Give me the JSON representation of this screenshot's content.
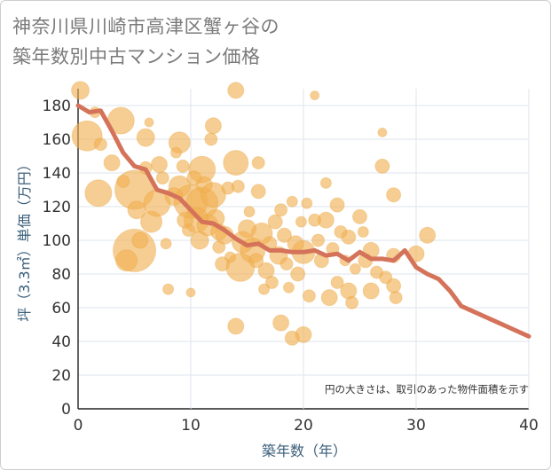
{
  "chart_data": {
    "type": "scatter",
    "title_lines": [
      "神奈川県川崎市高津区蟹ヶ谷の",
      "築年数別中古マンション価格"
    ],
    "xlabel": "築年数（年）",
    "ylabel": "坪（3.3㎡）単価（万円）",
    "xlim": [
      0,
      40
    ],
    "ylim": [
      0,
      190
    ],
    "x_ticks": [
      0,
      10,
      20,
      30,
      40
    ],
    "y_ticks": [
      0,
      20,
      40,
      60,
      80,
      100,
      120,
      140,
      160,
      180
    ],
    "grid": true,
    "annotation": "円の大きさは、取引のあった物件面積を示す",
    "colors": {
      "bubble": "#f0b050",
      "trend": "#d4735a",
      "grid": "#dde5ec",
      "axis_text": "#3a5f7a"
    },
    "trend_line": {
      "x": [
        0,
        1,
        2,
        3,
        4,
        5,
        6,
        7,
        8,
        9,
        10,
        11,
        12,
        13,
        14,
        15,
        16,
        17,
        18,
        19,
        20,
        21,
        22,
        23,
        24,
        25,
        26,
        27,
        28,
        29,
        30,
        31,
        32,
        33,
        34,
        35,
        36,
        37,
        38,
        39,
        40
      ],
      "y": [
        180,
        176,
        177,
        165,
        152,
        144,
        142,
        130,
        128,
        125,
        118,
        111,
        110,
        106,
        101,
        97,
        98,
        94,
        94,
        93,
        93,
        94,
        91,
        92,
        88,
        93,
        89,
        89,
        88,
        94,
        84,
        80,
        77,
        70,
        61,
        58,
        55,
        52,
        49,
        46,
        43
      ]
    },
    "bubbles": [
      {
        "x": 0.2,
        "y": 189,
        "s": 10
      },
      {
        "x": 0.8,
        "y": 162,
        "s": 17
      },
      {
        "x": 1.5,
        "y": 176,
        "s": 6
      },
      {
        "x": 2,
        "y": 157,
        "s": 7
      },
      {
        "x": 1.8,
        "y": 128,
        "s": 15
      },
      {
        "x": 3,
        "y": 146,
        "s": 9
      },
      {
        "x": 3.8,
        "y": 171,
        "s": 15
      },
      {
        "x": 4,
        "y": 135,
        "s": 7
      },
      {
        "x": 4.3,
        "y": 88,
        "s": 12
      },
      {
        "x": 5,
        "y": 130,
        "s": 22
      },
      {
        "x": 5,
        "y": 94,
        "s": 24
      },
      {
        "x": 5.2,
        "y": 118,
        "s": 10
      },
      {
        "x": 5.5,
        "y": 100,
        "s": 9
      },
      {
        "x": 6,
        "y": 161,
        "s": 10
      },
      {
        "x": 6,
        "y": 143,
        "s": 7
      },
      {
        "x": 6.3,
        "y": 170,
        "s": 5
      },
      {
        "x": 6.5,
        "y": 111,
        "s": 12
      },
      {
        "x": 7,
        "y": 122,
        "s": 15
      },
      {
        "x": 7.2,
        "y": 145,
        "s": 9
      },
      {
        "x": 7.5,
        "y": 137,
        "s": 7
      },
      {
        "x": 7.8,
        "y": 98,
        "s": 6
      },
      {
        "x": 8,
        "y": 71,
        "s": 6
      },
      {
        "x": 8.5,
        "y": 126,
        "s": 10
      },
      {
        "x": 8.7,
        "y": 152,
        "s": 6
      },
      {
        "x": 9,
        "y": 158,
        "s": 12
      },
      {
        "x": 9,
        "y": 132,
        "s": 12
      },
      {
        "x": 9.3,
        "y": 144,
        "s": 7
      },
      {
        "x": 9.5,
        "y": 112,
        "s": 9
      },
      {
        "x": 9.8,
        "y": 106,
        "s": 7
      },
      {
        "x": 10,
        "y": 69,
        "s": 5
      },
      {
        "x": 10,
        "y": 123,
        "s": 19
      },
      {
        "x": 10.3,
        "y": 137,
        "s": 8
      },
      {
        "x": 10.5,
        "y": 112,
        "s": 14
      },
      {
        "x": 10.8,
        "y": 100,
        "s": 10
      },
      {
        "x": 11,
        "y": 142,
        "s": 15
      },
      {
        "x": 11,
        "y": 122,
        "s": 18
      },
      {
        "x": 11.2,
        "y": 133,
        "s": 9
      },
      {
        "x": 11.5,
        "y": 109,
        "s": 12
      },
      {
        "x": 11.8,
        "y": 160,
        "s": 7
      },
      {
        "x": 12,
        "y": 168,
        "s": 9
      },
      {
        "x": 12,
        "y": 127,
        "s": 14
      },
      {
        "x": 12.2,
        "y": 113,
        "s": 10
      },
      {
        "x": 12.5,
        "y": 105,
        "s": 9
      },
      {
        "x": 12.5,
        "y": 96,
        "s": 7
      },
      {
        "x": 12.8,
        "y": 86,
        "s": 8
      },
      {
        "x": 13,
        "y": 103,
        "s": 10
      },
      {
        "x": 13.3,
        "y": 131,
        "s": 7
      },
      {
        "x": 13.5,
        "y": 90,
        "s": 6
      },
      {
        "x": 14,
        "y": 189,
        "s": 9
      },
      {
        "x": 14,
        "y": 146,
        "s": 14
      },
      {
        "x": 14.2,
        "y": 132,
        "s": 7
      },
      {
        "x": 14.4,
        "y": 84,
        "s": 16
      },
      {
        "x": 14.6,
        "y": 99,
        "s": 12
      },
      {
        "x": 14,
        "y": 49,
        "s": 9
      },
      {
        "x": 15,
        "y": 107,
        "s": 10
      },
      {
        "x": 15.2,
        "y": 117,
        "s": 6
      },
      {
        "x": 15.5,
        "y": 94,
        "s": 14
      },
      {
        "x": 15.8,
        "y": 88,
        "s": 8
      },
      {
        "x": 16,
        "y": 146,
        "s": 7
      },
      {
        "x": 16,
        "y": 129,
        "s": 8
      },
      {
        "x": 16.3,
        "y": 104,
        "s": 12
      },
      {
        "x": 16.5,
        "y": 71,
        "s": 6
      },
      {
        "x": 16.7,
        "y": 82,
        "s": 9
      },
      {
        "x": 17,
        "y": 98,
        "s": 8
      },
      {
        "x": 17.2,
        "y": 75,
        "s": 7
      },
      {
        "x": 17.5,
        "y": 111,
        "s": 8
      },
      {
        "x": 17.8,
        "y": 91,
        "s": 10
      },
      {
        "x": 18,
        "y": 51,
        "s": 9
      },
      {
        "x": 18,
        "y": 118,
        "s": 7
      },
      {
        "x": 18.3,
        "y": 103,
        "s": 8
      },
      {
        "x": 18.5,
        "y": 86,
        "s": 7
      },
      {
        "x": 18.7,
        "y": 72,
        "s": 6
      },
      {
        "x": 19,
        "y": 123,
        "s": 6
      },
      {
        "x": 19,
        "y": 42,
        "s": 8
      },
      {
        "x": 19.3,
        "y": 98,
        "s": 9
      },
      {
        "x": 19.5,
        "y": 80,
        "s": 8
      },
      {
        "x": 19.8,
        "y": 111,
        "s": 6
      },
      {
        "x": 20,
        "y": 44,
        "s": 9
      },
      {
        "x": 20,
        "y": 93,
        "s": 13
      },
      {
        "x": 20.3,
        "y": 122,
        "s": 6
      },
      {
        "x": 20.5,
        "y": 67,
        "s": 7
      },
      {
        "x": 21,
        "y": 186,
        "s": 5
      },
      {
        "x": 21,
        "y": 112,
        "s": 7
      },
      {
        "x": 21.3,
        "y": 100,
        "s": 7
      },
      {
        "x": 21.6,
        "y": 88,
        "s": 8
      },
      {
        "x": 22,
        "y": 134,
        "s": 6
      },
      {
        "x": 22,
        "y": 112,
        "s": 9
      },
      {
        "x": 22.3,
        "y": 66,
        "s": 9
      },
      {
        "x": 22.6,
        "y": 95,
        "s": 7
      },
      {
        "x": 23,
        "y": 121,
        "s": 8
      },
      {
        "x": 23,
        "y": 75,
        "s": 7
      },
      {
        "x": 23.3,
        "y": 105,
        "s": 7
      },
      {
        "x": 23.7,
        "y": 88,
        "s": 6
      },
      {
        "x": 24,
        "y": 102,
        "s": 8
      },
      {
        "x": 24,
        "y": 70,
        "s": 9
      },
      {
        "x": 24.3,
        "y": 63,
        "s": 7
      },
      {
        "x": 24.6,
        "y": 83,
        "s": 6
      },
      {
        "x": 25,
        "y": 114,
        "s": 8
      },
      {
        "x": 25.3,
        "y": 105,
        "s": 6
      },
      {
        "x": 25.5,
        "y": 88,
        "s": 8
      },
      {
        "x": 26,
        "y": 94,
        "s": 9
      },
      {
        "x": 26,
        "y": 70,
        "s": 9
      },
      {
        "x": 26.5,
        "y": 81,
        "s": 7
      },
      {
        "x": 27,
        "y": 164,
        "s": 5
      },
      {
        "x": 27,
        "y": 144,
        "s": 8
      },
      {
        "x": 27.3,
        "y": 78,
        "s": 7
      },
      {
        "x": 28,
        "y": 127,
        "s": 8
      },
      {
        "x": 28,
        "y": 91,
        "s": 8
      },
      {
        "x": 28,
        "y": 73,
        "s": 8
      },
      {
        "x": 28.2,
        "y": 66,
        "s": 7
      },
      {
        "x": 30,
        "y": 92,
        "s": 9
      },
      {
        "x": 31,
        "y": 103,
        "s": 9
      }
    ]
  }
}
